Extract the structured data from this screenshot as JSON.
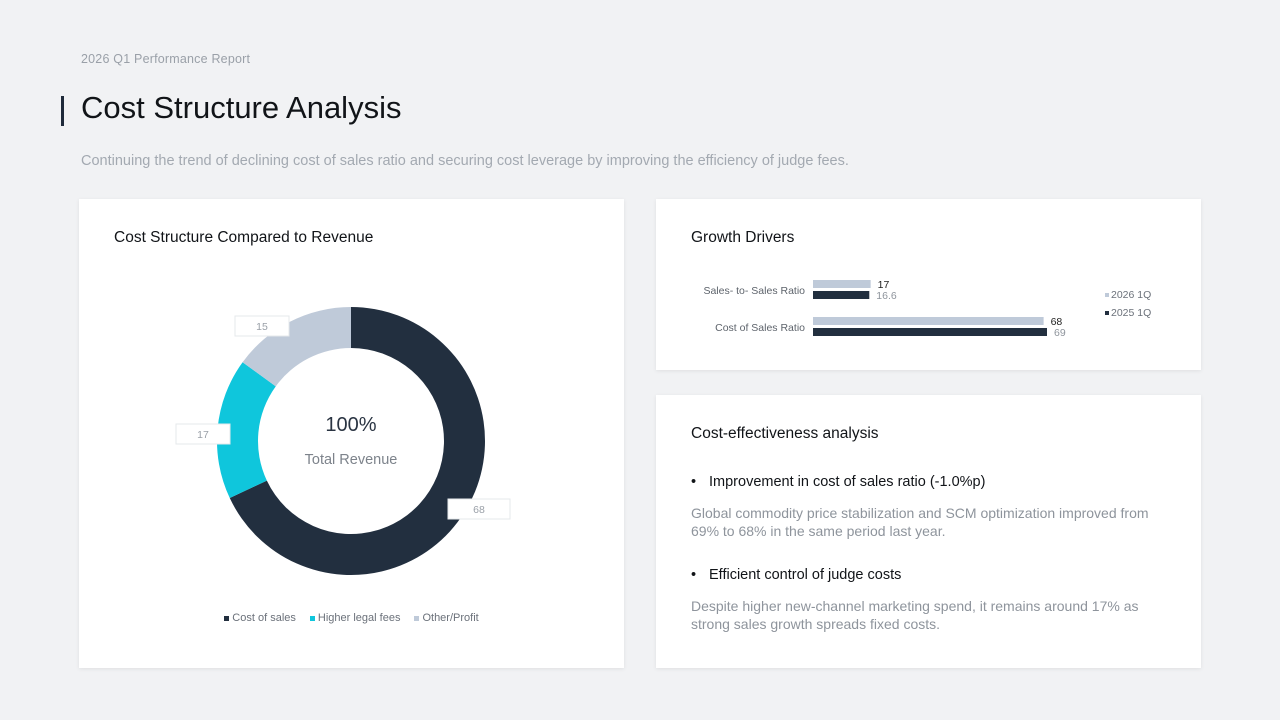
{
  "header": {
    "eyebrow": "2026 Q1 Performance Report",
    "title": "Cost Structure Analysis",
    "subtitle": "Continuing the trend of declining cost of sales ratio and securing cost leverage by improving the efficiency of judge fees."
  },
  "colors": {
    "navy": "#222f3f",
    "cyan": "#0fc6dc",
    "light": "#bfcad9"
  },
  "chart_data": [
    {
      "type": "pie",
      "title": "Cost Structure Compared to Revenue",
      "center_value": "100%",
      "center_label": "Total Revenue",
      "slices": [
        {
          "name": "Cost of sales",
          "value": 68,
          "color": "#222f3f"
        },
        {
          "name": "Higher legal fees",
          "value": 17,
          "color": "#0fc6dc"
        },
        {
          "name": "Other/Profit",
          "value": 15,
          "color": "#bfcad9"
        }
      ],
      "legend_position": "bottom"
    },
    {
      "type": "bar",
      "orientation": "horizontal",
      "title": "Growth Drivers",
      "categories": [
        "Sales- to- Sales Ratio",
        "Cost of Sales Ratio"
      ],
      "series": [
        {
          "name": "2026 1Q",
          "values": [
            17,
            68
          ],
          "labels": [
            "17",
            "68"
          ],
          "color": "#bfcad9"
        },
        {
          "name": "2025 1Q",
          "values": [
            16.6,
            69
          ],
          "labels": [
            "16.6",
            "69"
          ],
          "color": "#222f3f"
        }
      ],
      "xlim": [
        0,
        69
      ],
      "legend_position": "right"
    }
  ],
  "analysis": {
    "title": "Cost-effectiveness analysis",
    "points": [
      {
        "heading": "Improvement in cost of sales ratio (-1.0%p)",
        "body": "Global commodity price stabilization and SCM optimization improved from 69% to 68% in the same period last year."
      },
      {
        "heading": "Efficient control of judge costs",
        "body": "Despite higher new-channel marketing spend, it remains around 17% as strong sales growth spreads fixed costs."
      }
    ]
  }
}
